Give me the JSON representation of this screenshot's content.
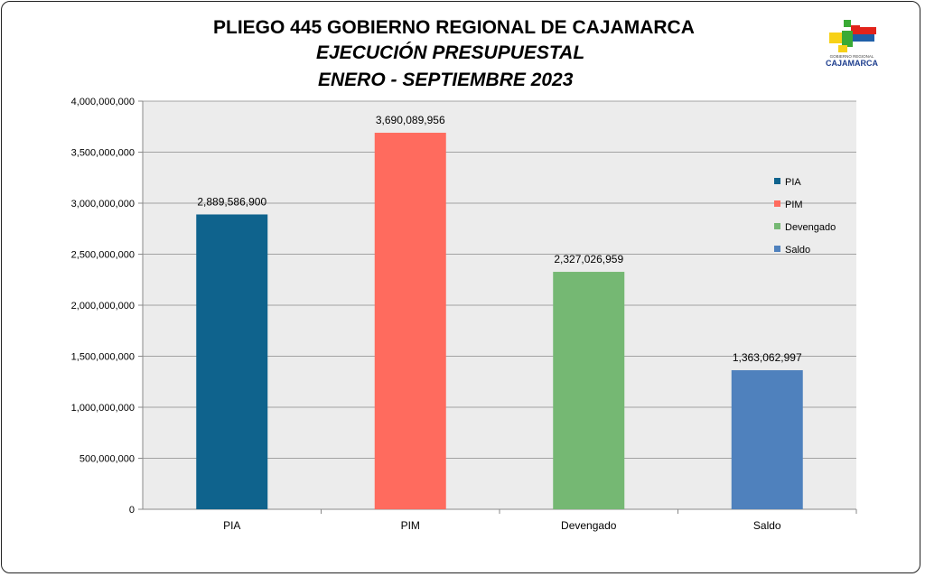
{
  "title_line1": "PLIEGO 445 GOBIERNO REGIONAL DE CAJAMARCA",
  "title_line2": "EJECUCIÓN PRESUPUESTAL",
  "title_line3": "ENERO - SEPTIEMBRE 2023",
  "logo": {
    "small_text": "GOBIERNO REGIONAL",
    "name": "CAJAMARCA",
    "colors": [
      "#e2231a",
      "#f7d117",
      "#3aaa35",
      "#1f5fa8"
    ]
  },
  "chart_data": {
    "type": "bar",
    "categories": [
      "PIA",
      "PIM",
      "Devengado",
      "Saldo"
    ],
    "values": [
      2889586900,
      3690089956,
      2327026959,
      1363062997
    ],
    "value_labels": [
      "2,889,586,900",
      "3,690,089,956",
      "2,327,026,959",
      "1,363,062,997"
    ],
    "colors": [
      "#0f638d",
      "#ff6b5e",
      "#75b873",
      "#4f81bd"
    ],
    "ylim": [
      0,
      4000000000
    ],
    "yticks": [
      0,
      500000000,
      1000000000,
      1500000000,
      2000000000,
      2500000000,
      3000000000,
      3500000000,
      4000000000
    ],
    "ytick_labels": [
      "0",
      "500,000,000",
      "1,000,000,000",
      "1,500,000,000",
      "2,000,000,000",
      "2,500,000,000",
      "3,000,000,000",
      "3,500,000,000",
      "4,000,000,000"
    ],
    "grid": true,
    "legend": [
      "PIA",
      "PIM",
      "Devengado",
      "Saldo"
    ],
    "legend_position": "right",
    "xlabel": "",
    "ylabel": ""
  }
}
